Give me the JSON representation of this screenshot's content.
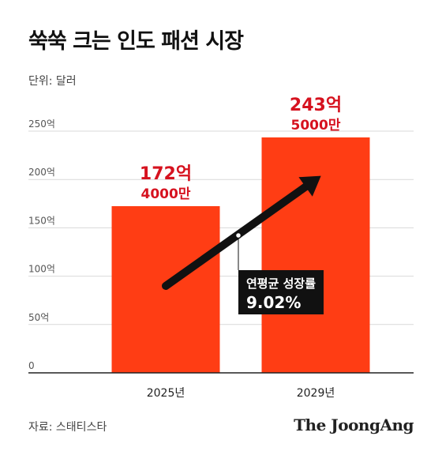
{
  "header": {
    "title": "쑥쑥 크는 인도 패션 시장",
    "unit": "단위: 달러"
  },
  "footer": {
    "source": "자료: 스태티스타",
    "logo": "The JoongAng"
  },
  "colors": {
    "bar": "#ff3d14",
    "value_label": "#d6121f",
    "arrow": "#111111",
    "grid": "#d9d9d9",
    "annotation_bg": "#111111"
  },
  "chart_data": {
    "type": "bar",
    "categories": [
      "2025년",
      "2029년"
    ],
    "values": [
      17240000000,
      24350000000
    ],
    "value_labels": [
      {
        "main": "172억",
        "sub": "4000만"
      },
      {
        "main": "243억",
        "sub": "5000만"
      }
    ],
    "y_ticks": [
      "0",
      "50억",
      "100억",
      "150억",
      "200억",
      "250억"
    ],
    "ylim": [
      0,
      25000000000
    ],
    "grid": true,
    "annotation": {
      "line1": "연평균 성장률",
      "line2": "9.02%"
    }
  }
}
